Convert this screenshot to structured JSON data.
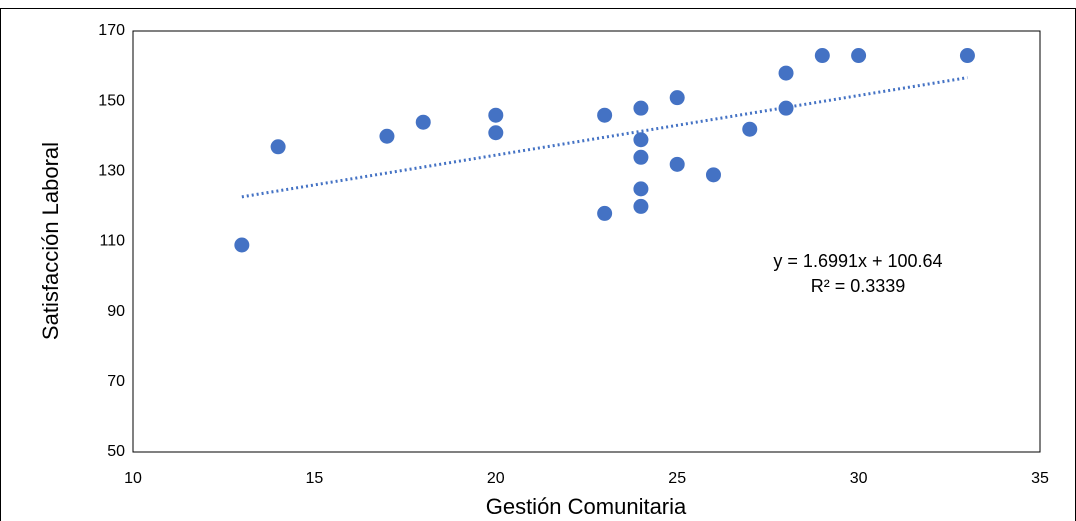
{
  "chart_data": {
    "type": "scatter",
    "x_label": "Gestión Comunitaria",
    "y_label": "Satisfacción Laboral",
    "color": "#4472c4",
    "x": [
      13,
      14,
      17,
      18,
      20,
      20,
      23,
      23,
      24,
      24,
      24,
      24,
      24,
      25,
      25,
      26,
      27,
      28,
      28,
      29,
      30,
      33
    ],
    "values": [
      109,
      137,
      140,
      144,
      146,
      141,
      146,
      118,
      148,
      139,
      134,
      125,
      120,
      151,
      132,
      129,
      142,
      158,
      148,
      163,
      163,
      163
    ],
    "xlim": [
      10,
      35
    ],
    "xticks": [
      10,
      15,
      20,
      25,
      30,
      35
    ],
    "ylim": [
      50,
      170
    ],
    "yticks": [
      50,
      70,
      90,
      110,
      130,
      150,
      170
    ],
    "grid": false,
    "trendline": {
      "slope": 1.6991,
      "intercept": 100.64,
      "style": "dotted"
    },
    "annotations": [
      "y = 1.6991x + 100.64",
      "R² = 0.3339"
    ]
  }
}
